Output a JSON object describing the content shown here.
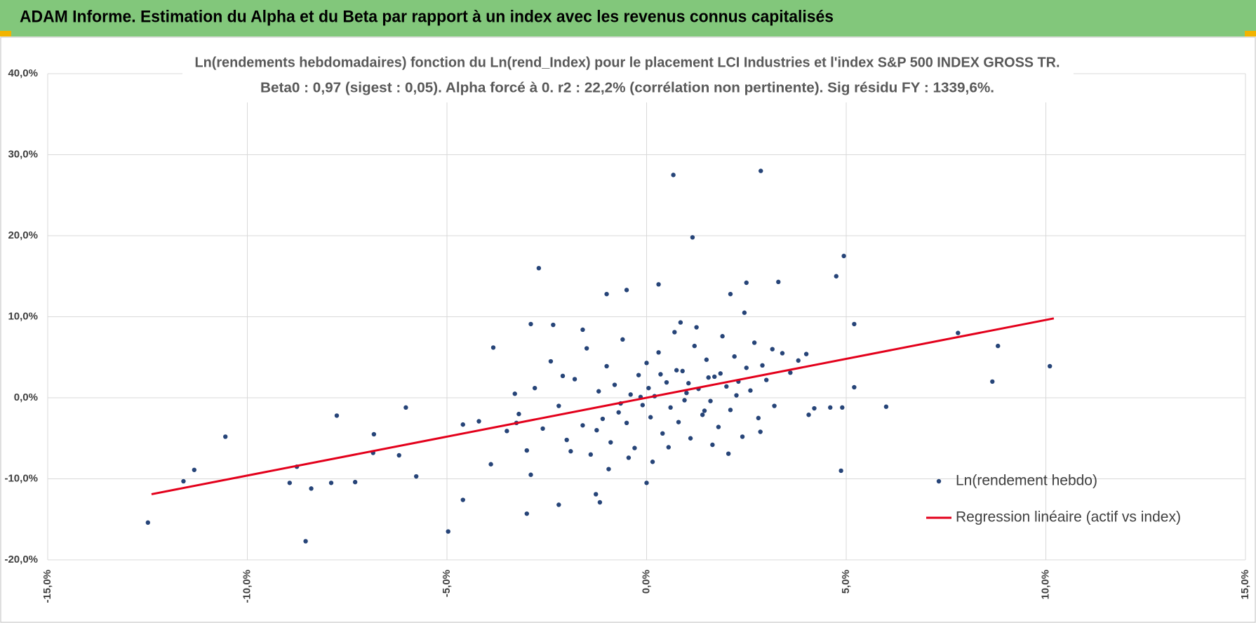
{
  "header": {
    "title": "ADAM Informe. Estimation du Alpha et du Beta par rapport à un index avec les revenus connus capitalisés"
  },
  "chart_data": {
    "type": "scatter",
    "title": "Ln(rendements hebdomadaires) fonction du Ln(rend_Index) pour le placement LCI Industries et l'index S&P 500 INDEX GROSS TR.",
    "subtitle": "Beta0 : 0,97 (sigest : 0,05).  Alpha forcé à 0. r2 : 22,2% (corrélation non pertinente). Sig résidu FY : 1339,6%.",
    "xlim": [
      -15,
      15
    ],
    "ylim": [
      -20,
      40
    ],
    "xticks": [
      {
        "value": -15,
        "label": "-15,0%"
      },
      {
        "value": -10,
        "label": "-10,0%"
      },
      {
        "value": -5,
        "label": "-5,0%"
      },
      {
        "value": 0,
        "label": "0,0%"
      },
      {
        "value": 5,
        "label": "5,0%"
      },
      {
        "value": 10,
        "label": "10,0%"
      },
      {
        "value": 15,
        "label": "15,0%"
      }
    ],
    "yticks": [
      {
        "value": -20,
        "label": "-20,0%"
      },
      {
        "value": -10,
        "label": "-10,0%"
      },
      {
        "value": 0,
        "label": "0,0%"
      },
      {
        "value": 10,
        "label": "10,0%"
      },
      {
        "value": 20,
        "label": "20,0%"
      },
      {
        "value": 30,
        "label": "30,0%"
      },
      {
        "value": 40,
        "label": "40,0%"
      }
    ],
    "grid": true,
    "legend": "bottom-right",
    "series": [
      {
        "name": "Ln(rendement hebdo)",
        "color": "#264478",
        "kind": "points",
        "x": [
          -12.49,
          -11.6,
          -11.33,
          -10.55,
          -8.94,
          -8.76,
          -8.54,
          -8.4,
          -7.9,
          -7.76,
          -7.3,
          -6.83,
          -6.85,
          -6.2,
          -6.03,
          -5.77,
          -4.97,
          -4.6,
          -3.84,
          -3.26,
          -3.0,
          -2.9,
          -2.7,
          -2.34,
          -2.2,
          -1.6,
          -1.27,
          -1.17,
          -1.0,
          -0.5,
          0.0,
          0.3,
          0.67,
          1.15,
          2.86,
          2.1,
          2.5,
          3.3,
          4.0,
          4.75,
          4.94,
          4.87,
          5.2,
          5.2,
          6.0,
          7.8,
          8.66,
          8.8,
          10.1,
          4.9,
          4.6,
          4.06,
          -3.5,
          -3.2,
          -3.0,
          -2.8,
          -2.6,
          -2.4,
          -2.2,
          -2.0,
          -1.8,
          -1.6,
          -1.5,
          -1.4,
          -1.2,
          -1.1,
          -1.0,
          -0.9,
          -0.8,
          -0.7,
          -0.6,
          -0.5,
          -0.4,
          -0.3,
          -0.2,
          -0.1,
          0.0,
          0.1,
          0.2,
          0.3,
          0.4,
          0.5,
          0.6,
          0.7,
          0.8,
          0.9,
          1.0,
          1.1,
          1.2,
          1.3,
          1.4,
          1.5,
          1.6,
          1.7,
          1.8,
          1.9,
          2.0,
          2.1,
          2.2,
          2.3,
          2.4,
          2.5,
          2.6,
          2.7,
          2.8,
          2.9,
          3.0,
          3.2,
          3.4,
          3.6,
          -4.2,
          -3.9,
          -2.9,
          -1.9,
          -0.95,
          -0.45,
          0.15,
          0.55,
          0.85,
          1.25,
          1.65,
          2.05,
          2.45,
          2.85,
          3.15,
          0.35,
          0.75,
          1.05,
          1.45,
          -0.15,
          -0.65,
          1.85,
          2.25,
          0.05,
          0.95,
          1.55,
          -1.25,
          -2.1,
          -3.3,
          3.8,
          4.2,
          -4.6
        ],
        "values": [
          -15.4,
          -10.3,
          -8.9,
          -4.8,
          -10.5,
          -8.5,
          -17.7,
          -11.2,
          -10.5,
          -2.2,
          -10.4,
          -4.5,
          -6.8,
          -7.1,
          -1.2,
          -9.7,
          -16.5,
          -12.6,
          6.2,
          -3.1,
          -14.3,
          9.1,
          16.0,
          9.0,
          -13.2,
          8.4,
          -11.9,
          -12.9,
          12.8,
          13.3,
          -10.5,
          14.0,
          27.5,
          19.8,
          28.0,
          12.8,
          14.2,
          14.3,
          5.4,
          15.0,
          17.5,
          -9.0,
          9.1,
          1.3,
          -1.1,
          8.0,
          2.0,
          6.4,
          3.9,
          -1.2,
          -1.2,
          -2.1,
          -4.1,
          -2.0,
          -6.5,
          1.2,
          -3.8,
          4.5,
          -1.0,
          -5.2,
          2.3,
          -3.4,
          6.1,
          -7.0,
          0.8,
          -2.6,
          3.9,
          -5.5,
          1.6,
          -1.8,
          7.2,
          -3.1,
          0.4,
          -6.2,
          2.8,
          -0.9,
          4.3,
          -2.4,
          0.2,
          5.6,
          -4.4,
          1.9,
          -1.2,
          8.1,
          -3.0,
          3.3,
          0.6,
          -5.0,
          6.4,
          1.1,
          -2.1,
          4.7,
          -0.4,
          2.6,
          -3.6,
          7.6,
          1.4,
          -1.5,
          5.1,
          2.0,
          -4.8,
          3.7,
          0.9,
          6.8,
          -2.5,
          4.0,
          2.2,
          -1.0,
          5.5,
          3.1,
          -2.9,
          -8.2,
          -9.5,
          -6.6,
          -8.8,
          -7.4,
          -7.9,
          -6.1,
          9.3,
          8.7,
          -5.8,
          -6.9,
          10.5,
          -4.2,
          6.0,
          2.9,
          3.4,
          1.8,
          -1.6,
          0.1,
          -0.7,
          3.0,
          0.3,
          1.2,
          -0.3,
          2.5,
          -4.0,
          2.7,
          0.5,
          4.6,
          -1.3,
          -3.3
        ]
      },
      {
        "name": "Regression linéaire (actif vs index)",
        "color": "#e3001b",
        "kind": "line",
        "x": [
          -12.4,
          10.2
        ],
        "values": [
          -11.9,
          9.8
        ]
      }
    ]
  }
}
